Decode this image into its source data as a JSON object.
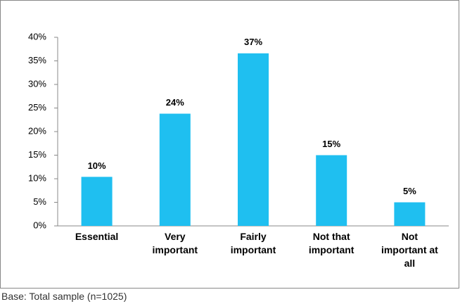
{
  "chart_data": {
    "type": "bar",
    "categories": [
      "Essential",
      "Very important",
      "Fairly important",
      "Not that important",
      "Not important at all"
    ],
    "values": [
      10.4,
      23.8,
      36.6,
      15,
      5
    ],
    "value_labels": [
      "10%",
      "24%",
      "37%",
      "15%",
      "5%"
    ],
    "color": "#1fbff0",
    "ylim": [
      0,
      40
    ],
    "yticks": [
      {
        "value": 0,
        "label": "0%"
      },
      {
        "value": 5,
        "label": "5%"
      },
      {
        "value": 10,
        "label": "10%"
      },
      {
        "value": 15,
        "label": "15%"
      },
      {
        "value": 20,
        "label": "20%"
      },
      {
        "value": 25,
        "label": "25%"
      },
      {
        "value": 30,
        "label": "30%"
      },
      {
        "value": 35,
        "label": "35%"
      },
      {
        "value": 40,
        "label": "40%"
      }
    ],
    "grid": false,
    "footnote": "Base: Total sample (n=1025)"
  }
}
